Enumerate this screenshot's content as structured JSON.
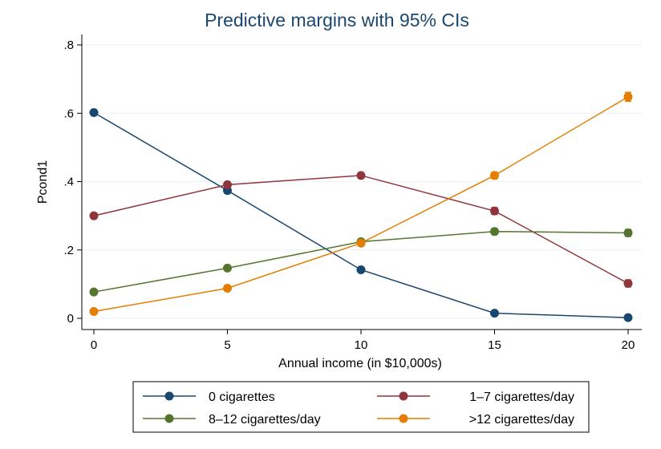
{
  "chart_data": {
    "type": "line",
    "title": "Predictive margins with 95% CIs",
    "xlabel": "Annual income (in $10,000s)",
    "ylabel": "Pcond1",
    "x": [
      0,
      5,
      10,
      15,
      20
    ],
    "xticks": [
      "0",
      "5",
      "10",
      "15",
      "20"
    ],
    "yticks": [
      {
        "value": 0,
        "label": "0"
      },
      {
        "value": 0.2,
        "label": ".2"
      },
      {
        "value": 0.4,
        "label": ".4"
      },
      {
        "value": 0.6,
        "label": ".6"
      },
      {
        "value": 0.8,
        "label": ".8"
      }
    ],
    "xlim": [
      0,
      20
    ],
    "ylim": [
      0,
      0.8
    ],
    "grid": true,
    "legend_position": "bottom",
    "series": [
      {
        "name": "0 cigarettes",
        "color": "#1a476f",
        "values": [
          0.602,
          0.374,
          0.142,
          0.015,
          0.002
        ],
        "ci": [
          0.008,
          0.008,
          0.007,
          0.004,
          0.002
        ]
      },
      {
        "name": "1–7 cigarettes/day",
        "color": "#90353b",
        "values": [
          0.3,
          0.391,
          0.418,
          0.314,
          0.102
        ],
        "ci": [
          0.008,
          0.008,
          0.008,
          0.01,
          0.01
        ]
      },
      {
        "name": "8–12 cigarettes/day",
        "color": "#55752f",
        "values": [
          0.077,
          0.147,
          0.224,
          0.254,
          0.25
        ],
        "ci": [
          0.006,
          0.007,
          0.008,
          0.009,
          0.01
        ]
      },
      {
        "name": ">12 cigarettes/day",
        "color": "#e37e00",
        "values": [
          0.02,
          0.088,
          0.22,
          0.418,
          0.648
        ],
        "ci": [
          0.004,
          0.006,
          0.008,
          0.01,
          0.013
        ]
      }
    ]
  }
}
